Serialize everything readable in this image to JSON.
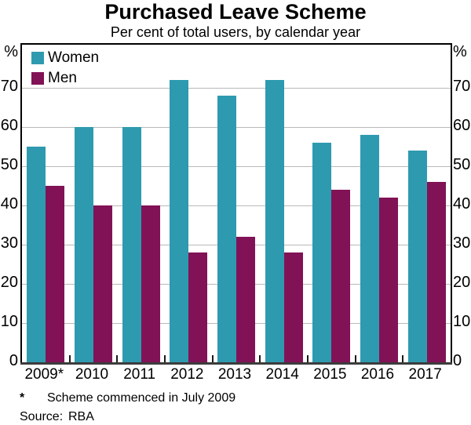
{
  "chart_data": {
    "type": "bar",
    "title": "Purchased Leave Scheme",
    "subtitle": "Per cent of total users, by calendar year",
    "unit_label": "%",
    "categories": [
      "2009*",
      "2010",
      "2011",
      "2012",
      "2013",
      "2014",
      "2015",
      "2016",
      "2017"
    ],
    "series": [
      {
        "name": "Women",
        "color": "#2E9AAF",
        "values": [
          55,
          60,
          60,
          72,
          68,
          72,
          56,
          58,
          54
        ]
      },
      {
        "name": "Men",
        "color": "#811256",
        "values": [
          45,
          40,
          40,
          28,
          32,
          28,
          44,
          42,
          46
        ]
      }
    ],
    "ylim": [
      0,
      81
    ],
    "yticks": [
      0,
      10,
      20,
      30,
      40,
      50,
      60,
      70
    ],
    "grid": true,
    "legend_position": "top-left",
    "colors": {
      "women": "#2E9AAF",
      "men": "#811256",
      "gridline": "#b9b9b9",
      "x_axis": "#3c3c3c",
      "frame": "#000000"
    }
  },
  "footnote": {
    "marker": "*",
    "text": "Scheme commenced in July 2009"
  },
  "source": {
    "label": "Source:",
    "value": "RBA"
  }
}
